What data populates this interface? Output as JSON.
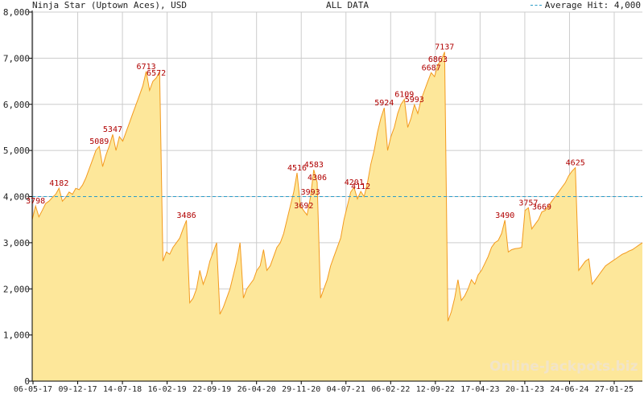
{
  "header": {
    "title": "Ninja Star (Uptown Aces), USD",
    "range": "ALL DATA",
    "avg_label": "Average Hit: 4,000"
  },
  "watermark": "Online-Jackpots.biz",
  "colors": {
    "fill": "#fde79a",
    "line": "#f39a1e",
    "avg": "#2a9bc7",
    "label": "#b00000",
    "grid": "#cccccc"
  },
  "chart_data": {
    "type": "area",
    "title": "Ninja Star (Uptown Aces), USD",
    "xlabel": "",
    "ylabel": "",
    "ylim": [
      0,
      8000
    ],
    "yticks": [
      0,
      1000,
      2000,
      3000,
      4000,
      5000,
      6000,
      7000,
      8000
    ],
    "ytick_labels": [
      "0",
      "1,000",
      "2,000",
      "3,000",
      "4,000",
      "5,000",
      "6,000",
      "7,000",
      "8,000"
    ],
    "xtick_labels": [
      "06-05-17",
      "09-12-17",
      "14-07-18",
      "16-02-19",
      "22-09-19",
      "26-04-20",
      "29-11-20",
      "04-07-21",
      "06-02-22",
      "12-09-22",
      "17-04-23",
      "20-11-23",
      "24-06-24",
      "27-01-25"
    ],
    "average_hit": 4000,
    "grid": true,
    "series_values": [
      3500,
      3798,
      3560,
      3700,
      3850,
      3900,
      3980,
      4050,
      4182,
      3900,
      3980,
      4100,
      4050,
      4180,
      4150,
      4250,
      4400,
      4600,
      4800,
      5000,
      5089,
      4650,
      4900,
      5100,
      5347,
      5000,
      5300,
      5200,
      5400,
      5600,
      5800,
      6000,
      6200,
      6400,
      6713,
      6300,
      6500,
      6572,
      6700,
      2600,
      2800,
      2750,
      2900,
      3000,
      3100,
      3300,
      3486,
      1700,
      1800,
      2000,
      2400,
      2100,
      2300,
      2600,
      2800,
      3000,
      1450,
      1600,
      1800,
      2000,
      2300,
      2600,
      3000,
      1800,
      2000,
      2100,
      2200,
      2400,
      2500,
      2850,
      2400,
      2500,
      2700,
      2900,
      3000,
      3200,
      3500,
      3800,
      4100,
      4516,
      3800,
      3692,
      3600,
      3993,
      4583,
      4306,
      1800,
      2000,
      2200,
      2500,
      2700,
      2900,
      3100,
      3500,
      3800,
      4100,
      4201,
      3950,
      4112,
      4000,
      4300,
      4700,
      5000,
      5400,
      5700,
      5924,
      5000,
      5300,
      5500,
      5800,
      6000,
      6109,
      5500,
      5700,
      5993,
      5800,
      6100,
      6300,
      6500,
      6687,
      6600,
      6863,
      6950,
      7137,
      1300,
      1500,
      1800,
      2200,
      1750,
      1850,
      2000,
      2200,
      2100,
      2300,
      2400,
      2550,
      2700,
      2900,
      3000,
      3050,
      3200,
      3490,
      2800,
      2850,
      2870,
      2880,
      2900,
      3700,
      3757,
      3300,
      3400,
      3500,
      3669,
      3700,
      3800,
      3900,
      4000,
      4100,
      4200,
      4300,
      4450,
      4550,
      4625,
      2400,
      2500,
      2600,
      2650,
      2100,
      2200,
      2300,
      2400,
      2500,
      2550,
      2600,
      2650,
      2700,
      2750,
      2780,
      2820,
      2850,
      2900,
      2950,
      3000
    ],
    "data_labels": [
      {
        "value": 3798,
        "text": "3798"
      },
      {
        "value": 4182,
        "text": "4182"
      },
      {
        "value": 5089,
        "text": "5089"
      },
      {
        "value": 5347,
        "text": "5347"
      },
      {
        "value": 6713,
        "text": "6713"
      },
      {
        "value": 6572,
        "text": "6572"
      },
      {
        "value": 3486,
        "text": "3486"
      },
      {
        "value": 4516,
        "text": "4516"
      },
      {
        "value": 4583,
        "text": "4583"
      },
      {
        "value": 4306,
        "text": "4306"
      },
      {
        "value": 3993,
        "text": "3993"
      },
      {
        "value": 3692,
        "text": "3692"
      },
      {
        "value": 4201,
        "text": "4201"
      },
      {
        "value": 4112,
        "text": "4112"
      },
      {
        "value": 5924,
        "text": "5924"
      },
      {
        "value": 6109,
        "text": "6109"
      },
      {
        "value": 5993,
        "text": "5993"
      },
      {
        "value": 6687,
        "text": "6687"
      },
      {
        "value": 6863,
        "text": "6863"
      },
      {
        "value": 7137,
        "text": "7137"
      },
      {
        "value": 3490,
        "text": "3490"
      },
      {
        "value": 3757,
        "text": "3757"
      },
      {
        "value": 3669,
        "text": "3669"
      },
      {
        "value": 4625,
        "text": "4625"
      }
    ]
  }
}
